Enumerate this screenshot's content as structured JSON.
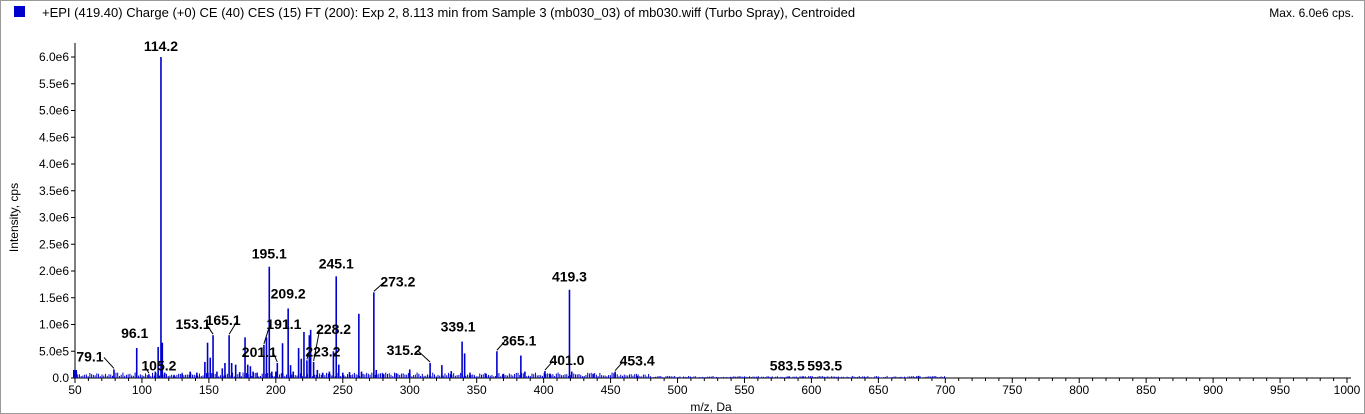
{
  "header": {
    "title": "+EPI (419.40) Charge (+0) CE (40) CES (15) FT (200): Exp 2, 8.113 min from Sample 3 (mb030_03) of mb030.wiff (Turbo Spray), Centroided",
    "max_label": "Max. 6.0e6 cps."
  },
  "colors": {
    "peaks": "#0000cc",
    "swatch": "#0000cc"
  },
  "chart_data": {
    "type": "bar",
    "xlabel": "m/z, Da",
    "ylabel": "Intensity, cps",
    "xlim": [
      50,
      1000
    ],
    "ylim": [
      0,
      6000000
    ],
    "x_ticks": [
      50,
      100,
      150,
      200,
      250,
      300,
      350,
      400,
      450,
      500,
      550,
      600,
      650,
      700,
      750,
      800,
      850,
      900,
      950,
      1000
    ],
    "x_tick_labels": [
      "50",
      "100",
      "150",
      "200",
      "250",
      "300",
      "350",
      "400",
      "450",
      "500",
      "550",
      "600",
      "650",
      "700",
      "750",
      "800",
      "850",
      "900",
      "950",
      "1000"
    ],
    "y_ticks": [
      0,
      500000,
      1000000,
      1500000,
      2000000,
      2500000,
      3000000,
      3500000,
      4000000,
      4500000,
      5000000,
      5500000,
      6000000
    ],
    "y_tick_labels": [
      "0.0",
      "5.0e5",
      "1.0e6",
      "1.5e6",
      "2.0e6",
      "2.5e6",
      "3.0e6",
      "3.5e6",
      "4.0e6",
      "4.5e6",
      "5.0e6",
      "5.5e6",
      "6.0e6"
    ],
    "peaks": [
      {
        "mz": 51.0,
        "intensity": 120000
      },
      {
        "mz": 79.1,
        "intensity": 160000
      },
      {
        "mz": 96.1,
        "intensity": 560000
      },
      {
        "mz": 105.2,
        "intensity": 70000
      },
      {
        "mz": 110.0,
        "intensity": 120000
      },
      {
        "mz": 112.1,
        "intensity": 580000
      },
      {
        "mz": 114.2,
        "intensity": 6000000
      },
      {
        "mz": 115.2,
        "intensity": 660000
      },
      {
        "mz": 117.0,
        "intensity": 100000
      },
      {
        "mz": 124.0,
        "intensity": 60000
      },
      {
        "mz": 130.0,
        "intensity": 80000
      },
      {
        "mz": 136.0,
        "intensity": 120000
      },
      {
        "mz": 141.0,
        "intensity": 100000
      },
      {
        "mz": 147.0,
        "intensity": 300000
      },
      {
        "mz": 149.0,
        "intensity": 660000
      },
      {
        "mz": 151.0,
        "intensity": 380000
      },
      {
        "mz": 153.1,
        "intensity": 800000
      },
      {
        "mz": 156.0,
        "intensity": 120000
      },
      {
        "mz": 160.0,
        "intensity": 180000
      },
      {
        "mz": 162.0,
        "intensity": 280000
      },
      {
        "mz": 165.1,
        "intensity": 800000
      },
      {
        "mz": 167.0,
        "intensity": 280000
      },
      {
        "mz": 170.0,
        "intensity": 250000
      },
      {
        "mz": 173.0,
        "intensity": 110000
      },
      {
        "mz": 177.0,
        "intensity": 760000
      },
      {
        "mz": 179.0,
        "intensity": 250000
      },
      {
        "mz": 181.0,
        "intensity": 220000
      },
      {
        "mz": 183.0,
        "intensity": 120000
      },
      {
        "mz": 186.0,
        "intensity": 100000
      },
      {
        "mz": 191.1,
        "intensity": 620000
      },
      {
        "mz": 193.0,
        "intensity": 760000
      },
      {
        "mz": 195.1,
        "intensity": 2080000
      },
      {
        "mz": 197.0,
        "intensity": 120000
      },
      {
        "mz": 200.0,
        "intensity": 120000
      },
      {
        "mz": 201.1,
        "intensity": 280000
      },
      {
        "mz": 205.0,
        "intensity": 650000
      },
      {
        "mz": 209.2,
        "intensity": 1300000
      },
      {
        "mz": 211.0,
        "intensity": 240000
      },
      {
        "mz": 213.0,
        "intensity": 120000
      },
      {
        "mz": 217.0,
        "intensity": 560000
      },
      {
        "mz": 219.0,
        "intensity": 360000
      },
      {
        "mz": 221.0,
        "intensity": 860000
      },
      {
        "mz": 223.2,
        "intensity": 330000
      },
      {
        "mz": 225.0,
        "intensity": 800000
      },
      {
        "mz": 226.0,
        "intensity": 900000
      },
      {
        "mz": 228.2,
        "intensity": 300000
      },
      {
        "mz": 231.0,
        "intensity": 150000
      },
      {
        "mz": 235.0,
        "intensity": 100000
      },
      {
        "mz": 240.0,
        "intensity": 120000
      },
      {
        "mz": 243.0,
        "intensity": 500000
      },
      {
        "mz": 245.1,
        "intensity": 1900000
      },
      {
        "mz": 247.0,
        "intensity": 250000
      },
      {
        "mz": 250.0,
        "intensity": 100000
      },
      {
        "mz": 255.0,
        "intensity": 110000
      },
      {
        "mz": 262.0,
        "intensity": 1200000
      },
      {
        "mz": 264.0,
        "intensity": 120000
      },
      {
        "mz": 273.2,
        "intensity": 1600000
      },
      {
        "mz": 275.0,
        "intensity": 150000
      },
      {
        "mz": 280.0,
        "intensity": 80000
      },
      {
        "mz": 290.0,
        "intensity": 90000
      },
      {
        "mz": 300.0,
        "intensity": 160000
      },
      {
        "mz": 315.2,
        "intensity": 280000
      },
      {
        "mz": 324.0,
        "intensity": 240000
      },
      {
        "mz": 331.0,
        "intensity": 130000
      },
      {
        "mz": 339.1,
        "intensity": 680000
      },
      {
        "mz": 341.0,
        "intensity": 460000
      },
      {
        "mz": 345.0,
        "intensity": 100000
      },
      {
        "mz": 357.0,
        "intensity": 80000
      },
      {
        "mz": 365.1,
        "intensity": 500000
      },
      {
        "mz": 370.0,
        "intensity": 80000
      },
      {
        "mz": 383.0,
        "intensity": 420000
      },
      {
        "mz": 386.0,
        "intensity": 120000
      },
      {
        "mz": 401.0,
        "intensity": 130000
      },
      {
        "mz": 405.0,
        "intensity": 80000
      },
      {
        "mz": 419.3,
        "intensity": 1650000
      },
      {
        "mz": 421.0,
        "intensity": 120000
      },
      {
        "mz": 437.0,
        "intensity": 80000
      },
      {
        "mz": 453.4,
        "intensity": 120000
      },
      {
        "mz": 470.0,
        "intensity": 40000
      },
      {
        "mz": 583.5,
        "intensity": 30000
      },
      {
        "mz": 593.5,
        "intensity": 30000
      },
      {
        "mz": 680.0,
        "intensity": 40000
      }
    ],
    "peak_labels": [
      {
        "text": "114.2",
        "mz": 114.2,
        "intensity": 6000000
      },
      {
        "text": "79.1",
        "mz": 79.1,
        "intensity": 160000
      },
      {
        "text": "96.1",
        "mz": 96.1,
        "intensity": 560000
      },
      {
        "text": "105.2",
        "mz": 105.2,
        "intensity": 70000
      },
      {
        "text": "153.1",
        "mz": 153.1,
        "intensity": 800000
      },
      {
        "text": "165.1",
        "mz": 165.1,
        "intensity": 800000
      },
      {
        "text": "195.1",
        "mz": 195.1,
        "intensity": 2080000
      },
      {
        "text": "201.1",
        "mz": 201.1,
        "intensity": 280000
      },
      {
        "text": "191.1",
        "mz": 191.1,
        "intensity": 620000
      },
      {
        "text": "209.2",
        "mz": 209.2,
        "intensity": 1300000
      },
      {
        "text": "223.2",
        "mz": 223.2,
        "intensity": 330000
      },
      {
        "text": "228.2",
        "mz": 228.2,
        "intensity": 300000
      },
      {
        "text": "245.1",
        "mz": 245.1,
        "intensity": 1900000
      },
      {
        "text": "273.2",
        "mz": 273.2,
        "intensity": 1600000
      },
      {
        "text": "315.2",
        "mz": 315.2,
        "intensity": 280000
      },
      {
        "text": "339.1",
        "mz": 339.1,
        "intensity": 680000
      },
      {
        "text": "365.1",
        "mz": 365.1,
        "intensity": 500000
      },
      {
        "text": "401.0",
        "mz": 401.0,
        "intensity": 130000
      },
      {
        "text": "419.3",
        "mz": 419.3,
        "intensity": 1650000
      },
      {
        "text": "453.4",
        "mz": 453.4,
        "intensity": 120000
      },
      {
        "text": "583.5",
        "mz": 583.5,
        "intensity": 30000
      },
      {
        "text": "593.5",
        "mz": 593.5,
        "intensity": 30000
      }
    ]
  }
}
